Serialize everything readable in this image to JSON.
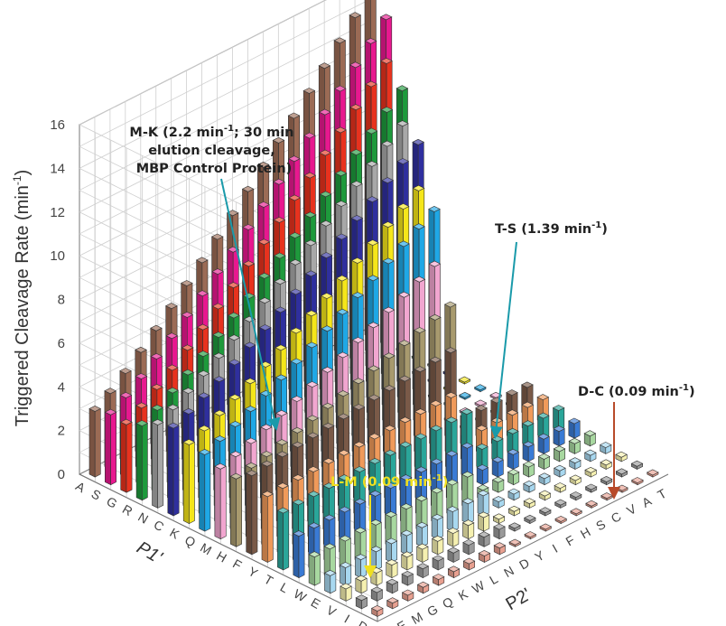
{
  "chart_data": {
    "type": "bar3d",
    "title": "",
    "zlabel": "Triggered Cleavage Rate (min",
    "zlabel_unit_sup": "-1",
    "zlabel_close": ")",
    "zlim": [
      0,
      16
    ],
    "zticks": [
      "0",
      "2",
      "4",
      "6",
      "8",
      "10",
      "12",
      "14",
      "16"
    ],
    "p1_label": "P1'",
    "p2_label": "P2'",
    "p1_categories": [
      "A",
      "S",
      "G",
      "R",
      "N",
      "C",
      "K",
      "Q",
      "M",
      "H",
      "F",
      "Y",
      "T",
      "L",
      "W",
      "E",
      "V",
      "I",
      "D"
    ],
    "p2_categories": [
      "R",
      "E",
      "M",
      "G",
      "Q",
      "K",
      "W",
      "L",
      "N",
      "D",
      "Y",
      "I",
      "F",
      "H",
      "S",
      "C",
      "V",
      "A",
      "T"
    ],
    "row_base_rates": [
      3.0,
      3.2,
      3.1,
      3.4,
      3.8,
      4.0,
      3.6,
      3.5,
      3.2,
      3.1,
      3.6,
      3.0,
      2.6,
      1.9,
      1.3,
      0.8,
      0.55,
      0.38,
      0.25
    ],
    "row_peak_rates": [
      15.8,
      14.9,
      13.6,
      12.7,
      11.8,
      11.3,
      9.9,
      9.3,
      7.5,
      6.0,
      5.0,
      3.4,
      3.0,
      2.1,
      1.5,
      1.0,
      0.7,
      0.5,
      0.35
    ],
    "row_colors": [
      "#9b6b55",
      "#e8188f",
      "#e8321e",
      "#1e9a3c",
      "#a8a8a8",
      "#2f2f9e",
      "#f5e61a",
      "#1fa8e6",
      "#f2a6d0",
      "#a89a6e",
      "#7a5a48",
      "#f09a5a",
      "#2aa69a",
      "#3a7bd5",
      "#a8d8a0",
      "#a8d8f0",
      "#f5f0b0",
      "#9a9a9a",
      "#e8a090"
    ],
    "annotations": [
      {
        "line1": "M-K (2.2 min",
        "sup1": "-1",
        "line1b": "; 30 min",
        "line2": "elution cleavage,",
        "line3": "MBP Control Protein)",
        "arrow_color": "#1a9aaa"
      },
      {
        "text": "T-S (1.39 min",
        "sup": "-1",
        "close": ")",
        "arrow_color": "#1a9aaa"
      },
      {
        "text": "D-C (0.09 min",
        "sup": "-1",
        "close": ")",
        "arrow_color": "#b84a2a"
      },
      {
        "text": "L-M (0.09 min",
        "sup": "-1",
        "close": ")",
        "arrow_color": "#f0e020"
      }
    ]
  }
}
